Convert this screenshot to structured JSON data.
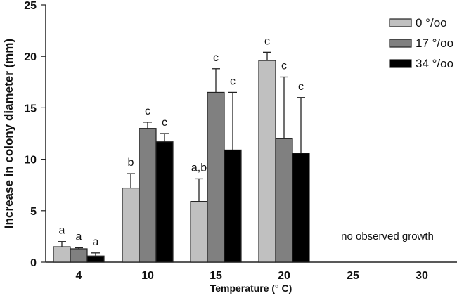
{
  "chart_data": {
    "type": "bar",
    "title": "",
    "xlabel": "Temperature (° C)",
    "ylabel": "Increase in colony diameter (mm)",
    "ylim": [
      0,
      25
    ],
    "yticks": [
      0,
      5,
      10,
      15,
      20,
      25
    ],
    "categories": [
      "4",
      "10",
      "15",
      "20",
      "25",
      "30"
    ],
    "legend_position": "top-right",
    "series": [
      {
        "name": "0 °/oo",
        "color": "#c0c0c0",
        "values": [
          1.5,
          7.2,
          5.9,
          19.6,
          null,
          null
        ],
        "errors": [
          0.5,
          1.4,
          2.2,
          0.8,
          null,
          null
        ],
        "letters": [
          "a",
          "b",
          "a,b",
          "c",
          null,
          null
        ]
      },
      {
        "name": "17 °/oo",
        "color": "#808080",
        "values": [
          1.3,
          13.0,
          16.5,
          12.0,
          null,
          null
        ],
        "errors": [
          0.1,
          0.6,
          2.3,
          6.0,
          null,
          null
        ],
        "letters": [
          "a",
          "c",
          "c",
          "c",
          null,
          null
        ]
      },
      {
        "name": "34 °/oo",
        "color": "#000000",
        "values": [
          0.6,
          11.7,
          10.9,
          10.6,
          null,
          null
        ],
        "errors": [
          0.3,
          0.8,
          5.6,
          5.4,
          null,
          null
        ],
        "letters": [
          "a",
          "c",
          "c",
          "c",
          null,
          null
        ]
      }
    ],
    "annotations": [
      {
        "text": "no observed growth",
        "near_categories": [
          "25",
          "30"
        ]
      }
    ],
    "grid": false
  }
}
